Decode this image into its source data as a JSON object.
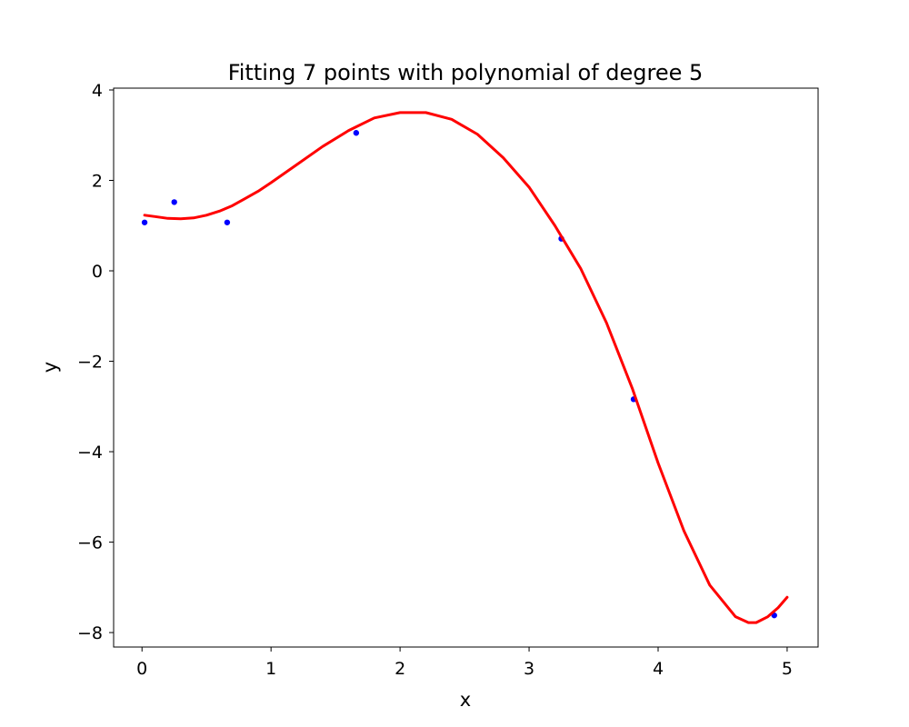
{
  "chart_data": {
    "type": "scatter",
    "title": "Fitting 7 points with polynomial of degree 5",
    "xlabel": "x",
    "ylabel": "y",
    "xlim": [
      -0.22,
      5.24
    ],
    "ylim": [
      -8.32,
      4.04
    ],
    "xticks": [
      0,
      1,
      2,
      3,
      4,
      5
    ],
    "yticks": [
      4,
      2,
      0,
      -2,
      -4,
      -6,
      -8
    ],
    "xtick_labels": [
      "0",
      "1",
      "2",
      "3",
      "4",
      "5"
    ],
    "ytick_labels": [
      "4",
      "2",
      "0",
      "−2",
      "−4",
      "−6",
      "−8"
    ],
    "grid": false,
    "legend": false,
    "series": [
      {
        "kind": "points",
        "color": "#0000ff",
        "x": [
          0.02,
          0.25,
          0.66,
          1.66,
          3.25,
          3.81,
          4.9
        ],
        "y": [
          1.07,
          1.52,
          1.07,
          3.05,
          0.71,
          -2.84,
          -7.62
        ]
      },
      {
        "kind": "fit-curve",
        "color": "#ff0000",
        "degree": 5,
        "x": [
          0.02,
          0.1,
          0.2,
          0.3,
          0.4,
          0.5,
          0.6,
          0.7,
          0.8,
          0.9,
          1.0,
          1.2,
          1.4,
          1.6,
          1.8,
          2.0,
          2.2,
          2.4,
          2.6,
          2.8,
          3.0,
          3.2,
          3.4,
          3.6,
          3.8,
          4.0,
          4.2,
          4.4,
          4.6,
          4.7,
          4.76,
          4.85,
          4.93,
          5.0
        ],
        "y": [
          1.23,
          1.2,
          1.16,
          1.15,
          1.17,
          1.23,
          1.32,
          1.44,
          1.6,
          1.76,
          1.95,
          2.35,
          2.75,
          3.1,
          3.38,
          3.5,
          3.5,
          3.35,
          3.02,
          2.5,
          1.85,
          1.0,
          0.05,
          -1.15,
          -2.6,
          -4.25,
          -5.75,
          -6.95,
          -7.65,
          -7.78,
          -7.78,
          -7.65,
          -7.45,
          -7.22
        ]
      }
    ]
  }
}
